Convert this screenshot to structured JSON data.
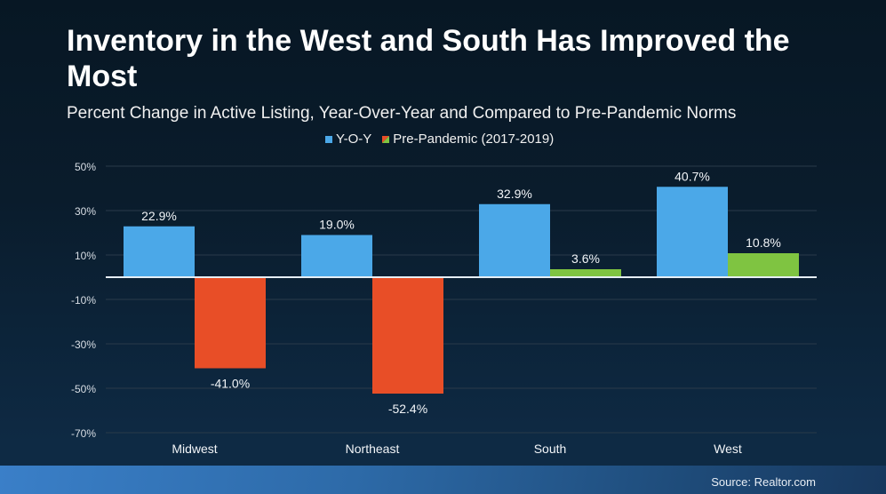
{
  "header": {
    "title": "Inventory in the West and South Has Improved the Most",
    "subtitle": "Percent Change in Active Listing, Year-Over-Year and Compared to Pre-Pandemic Norms"
  },
  "footer": {
    "source": "Source: Realtor.com"
  },
  "colors": {
    "yoy": "#4ba8e8",
    "pre_negative": "#e84e27",
    "pre_positive": "#7fc441",
    "gridline": "#2a3a4a",
    "zero_line": "#e6eef5"
  },
  "chart_data": {
    "type": "bar",
    "title": "Inventory in the West and South Has Improved the Most",
    "subtitle": "Percent Change in Active Listing, Year-Over-Year and Compared to Pre-Pandemic Norms",
    "xlabel": "",
    "ylabel": "",
    "categories": [
      "Midwest",
      "Northeast",
      "South",
      "West"
    ],
    "series": [
      {
        "name": "Y-O-Y",
        "values": [
          22.9,
          19.0,
          32.9,
          40.7
        ],
        "labels": [
          "22.9%",
          "19.0%",
          "32.9%",
          "40.7%"
        ]
      },
      {
        "name": "Pre-Pandemic (2017-2019)",
        "values": [
          -41.0,
          -52.4,
          3.6,
          10.8
        ],
        "labels": [
          "-41.0%",
          "-52.4%",
          "3.6%",
          "10.8%"
        ]
      }
    ],
    "ylim": [
      -70,
      50
    ],
    "yticks": [
      50,
      30,
      10,
      -10,
      -30,
      -50,
      -70
    ],
    "ytick_labels": [
      "50%",
      "30%",
      "10%",
      "-10%",
      "-30%",
      "-50%",
      "-70%"
    ],
    "grid": true,
    "legend": "top-center"
  }
}
